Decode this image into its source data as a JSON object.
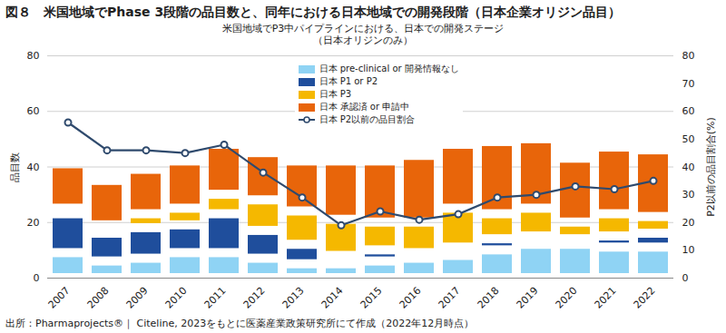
{
  "chart_data": {
    "type": "bar",
    "title": "図８　米国地域でPhase 3段階の品目数と、同年における日本地域での開発段階（日本企業オリジン品目）",
    "subtitle": "米国地域でP3中パイプラインにおける、日本での開発ステージ\n（日本オリジンのみ）",
    "caption": "出所：Pharmaprojects®｜ Citeline, 2023をもとに医薬産業政策研究所にて作成（2022年12月時点）",
    "ylabel": "品目数",
    "y2label": "P2以前の品目割合(%)",
    "categories": [
      "2007",
      "2008",
      "2009",
      "2010",
      "2011",
      "2012",
      "2013",
      "2014",
      "2015",
      "2016",
      "2017",
      "2018",
      "2019",
      "2020",
      "2021",
      "2022"
    ],
    "series": [
      {
        "name": "日本 pre-clinical or 開発情報なし",
        "type": "bar",
        "color": "#8fd3f4",
        "values": [
          9,
          6,
          7,
          9,
          9,
          7,
          5,
          5,
          6,
          7,
          8,
          10,
          12,
          12,
          11,
          11
        ]
      },
      {
        "name": "日本 P1 or P2",
        "type": "bar",
        "color": "#1f4e9c",
        "values": [
          14,
          10,
          11,
          10,
          14,
          10,
          7,
          3,
          4,
          2,
          3,
          4,
          3,
          2,
          4,
          5
        ]
      },
      {
        "name": "日本 P3",
        "type": "bar",
        "color": "#f5b800",
        "values": [
          2,
          3,
          5,
          6,
          7,
          11,
          12,
          13,
          10,
          11,
          14,
          9,
          10,
          6,
          8,
          6
        ]
      },
      {
        "name": "日本 承認済 or 申請中",
        "type": "bar",
        "color": "#e8650a",
        "values": [
          16,
          16,
          16,
          17,
          18,
          17,
          18,
          21,
          22,
          24,
          23,
          26,
          25,
          23,
          24,
          24
        ]
      },
      {
        "name": "日本 P2以前の品目割合",
        "type": "line",
        "axis": "y2",
        "marker": "circle",
        "color": "#2f4a6d",
        "values": [
          56,
          46,
          46,
          45,
          48,
          38,
          29,
          19,
          24,
          21,
          23,
          29,
          30,
          33,
          32,
          35
        ]
      }
    ],
    "ylim": [
      0,
      80
    ],
    "yticks": [
      0,
      20,
      40,
      60,
      80
    ],
    "y2lim": [
      0,
      80
    ],
    "y2ticks": [
      0,
      10,
      20,
      30,
      40,
      50,
      60,
      70,
      80
    ],
    "stacked": true,
    "grid": true,
    "legend": "top"
  }
}
